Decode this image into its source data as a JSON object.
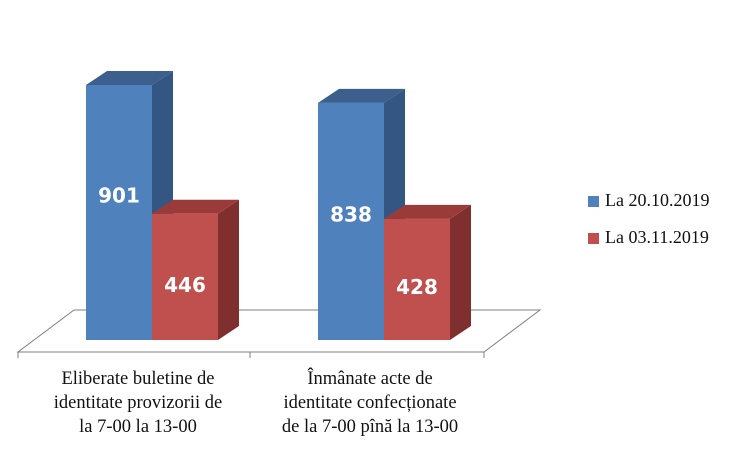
{
  "chart_data": {
    "type": "bar",
    "three_d": true,
    "categories": [
      [
        "Eliberate buletine de",
        "identitate provizorii de",
        "la 7-00 la 13-00"
      ],
      [
        "Înmânate acte de",
        "identitate confecționate",
        "de la 7-00 pînă la 13-00"
      ]
    ],
    "series": [
      {
        "name": "La 20.10.2019",
        "values": [
          901,
          838
        ]
      },
      {
        "name": "La 03.11.2019",
        "values": [
          446,
          428
        ]
      }
    ],
    "data_labels": true,
    "legend_position": "right",
    "grid": false,
    "title": "",
    "xlabel": "",
    "ylabel": ""
  },
  "colors": {
    "series": [
      {
        "front": "#4F81BD",
        "side": "#345682",
        "top": "#3C5F8E"
      },
      {
        "front": "#C0504D",
        "side": "#7F2F2D",
        "top": "#9A3B39"
      }
    ],
    "floor_stroke": "#7f7f7f"
  }
}
